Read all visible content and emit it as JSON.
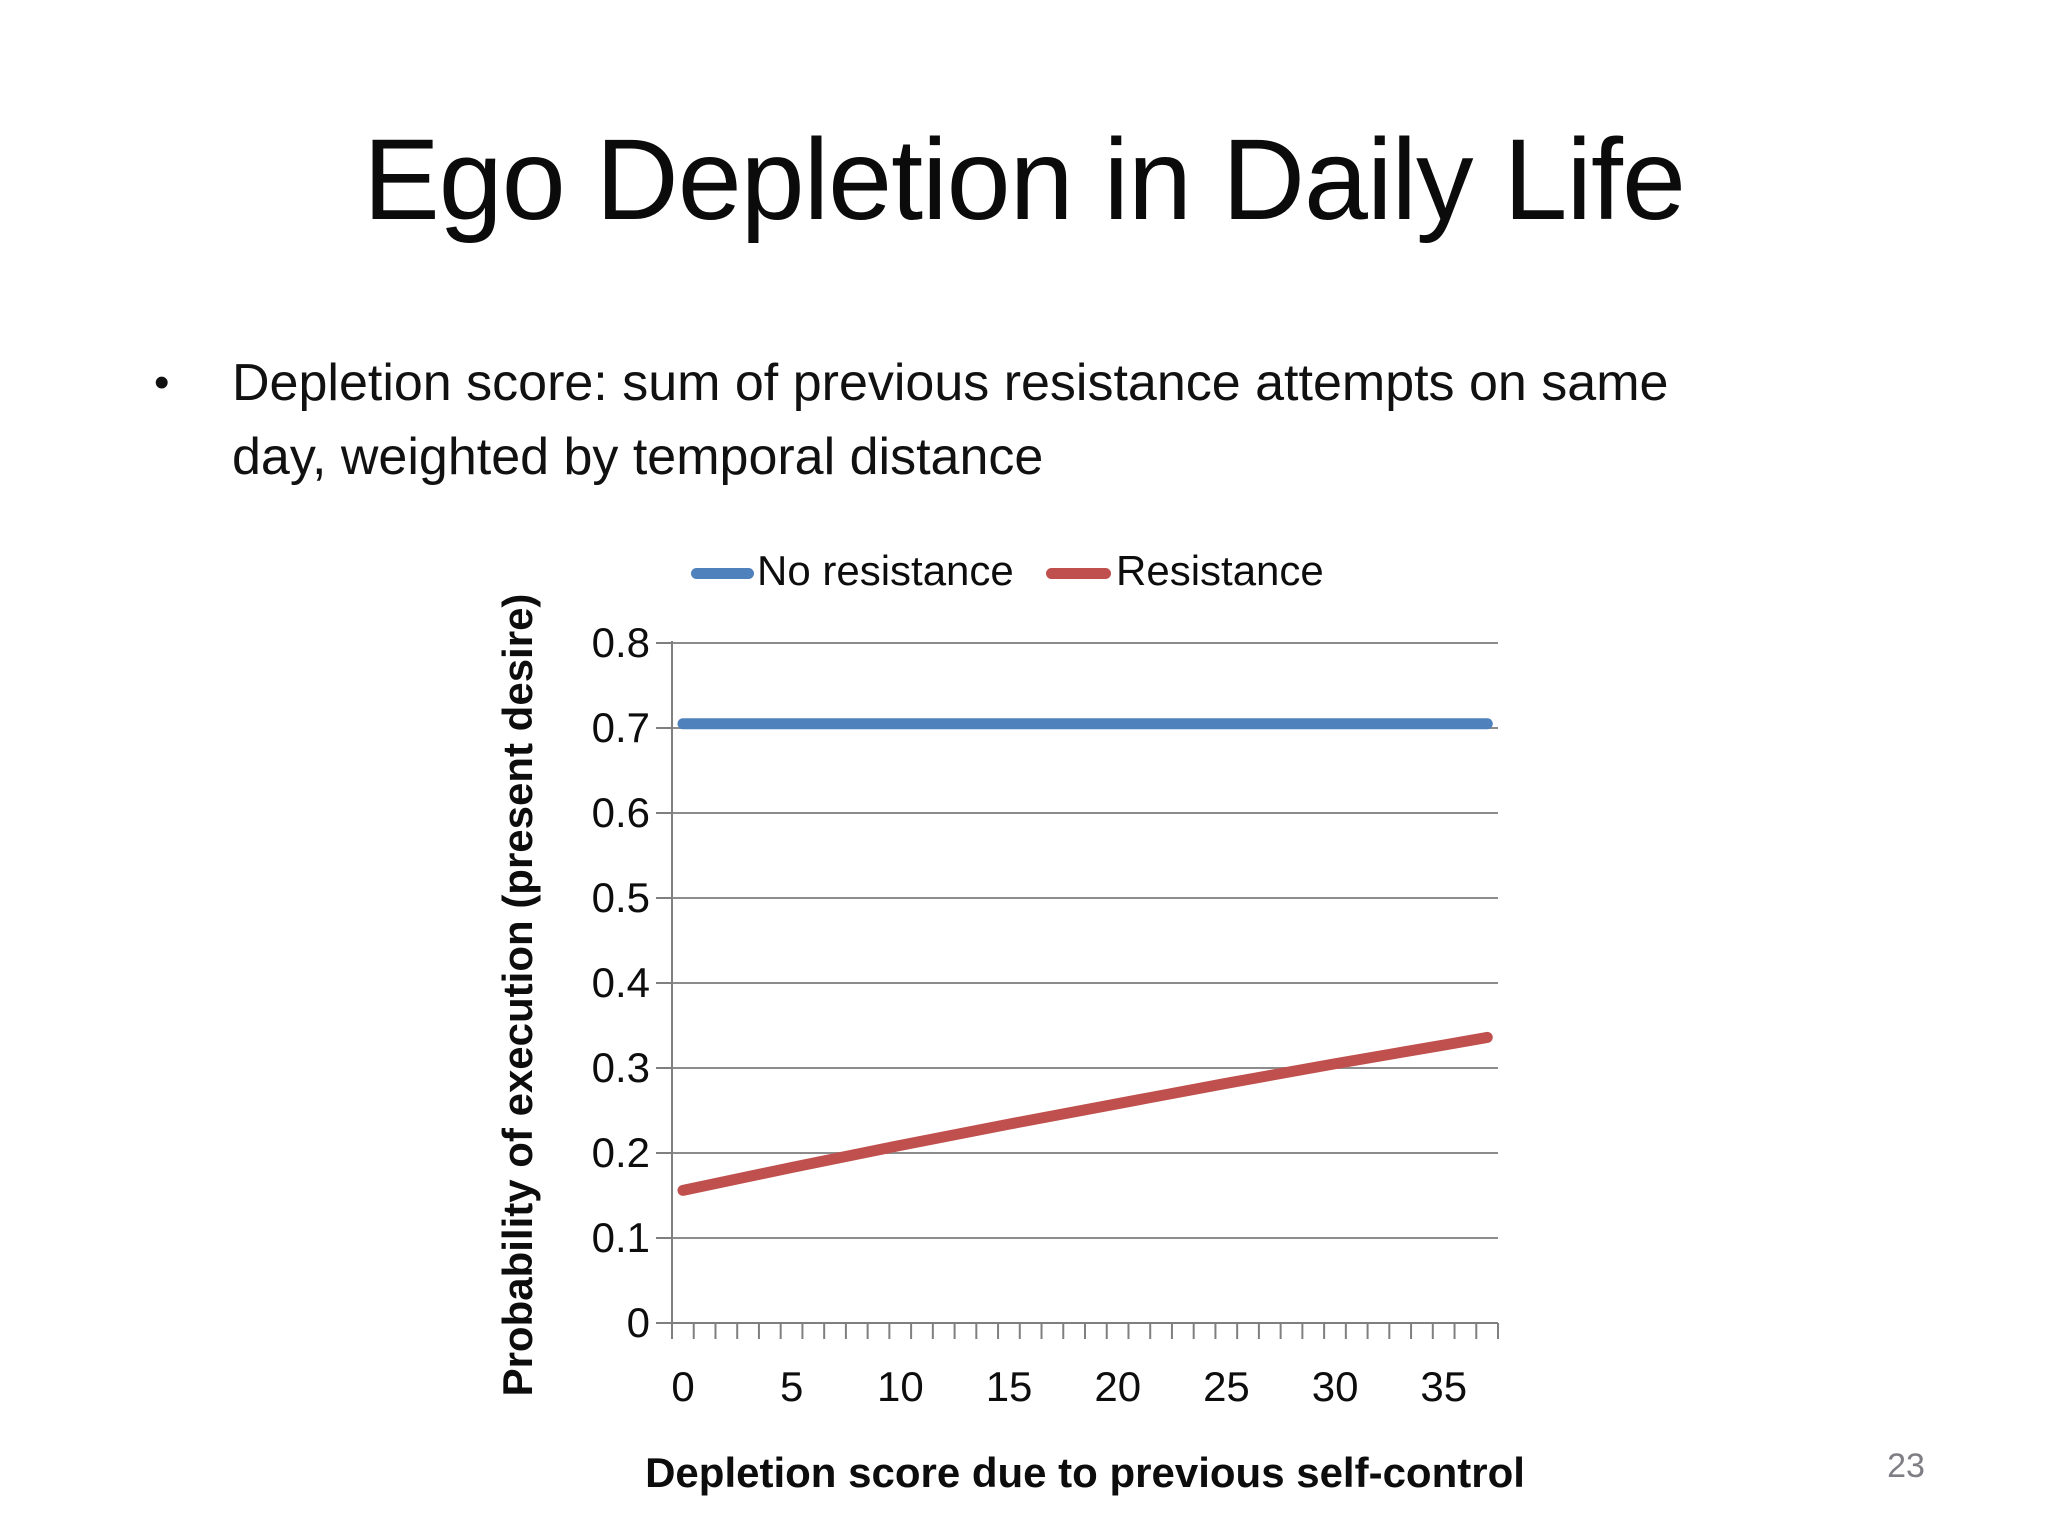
{
  "slide": {
    "title": "Ego Depletion in Daily Life",
    "bullet_char": "•",
    "bullet_text": "Depletion score: sum of previous resistance attempts on same\nday, weighted by temporal distance",
    "page_number": "23"
  },
  "chart_data": {
    "type": "line",
    "title": "",
    "xlabel": "Depletion score due to previous self-control",
    "ylabel": "Probability of execution (present desire)",
    "xlim": [
      0,
      37
    ],
    "ylim": [
      0,
      0.8
    ],
    "grid": true,
    "legend_position": "top",
    "x_ticks": [
      0,
      5,
      10,
      15,
      20,
      25,
      30,
      35
    ],
    "x_tick_labels": [
      "0",
      "5",
      "10",
      "15",
      "20",
      "25",
      "30",
      "35"
    ],
    "x_minor_tick_step": 1,
    "y_ticks": [
      0,
      0.1,
      0.2,
      0.3,
      0.4,
      0.5,
      0.6,
      0.7,
      0.8
    ],
    "y_tick_labels": [
      "0",
      "0.1",
      "0.2",
      "0.3",
      "0.4",
      "0.5",
      "0.6",
      "0.7",
      "0.8"
    ],
    "x": [
      0,
      5,
      10,
      15,
      20,
      25,
      30,
      35,
      37
    ],
    "series": [
      {
        "name": "No resistance",
        "color": "#4F81BD",
        "values": [
          0.705,
          0.705,
          0.705,
          0.705,
          0.705,
          0.705,
          0.705,
          0.705,
          0.705
        ]
      },
      {
        "name": "Resistance",
        "color": "#C0504D",
        "values": [
          0.156,
          0.183,
          0.209,
          0.234,
          0.258,
          0.282,
          0.305,
          0.327,
          0.336
        ]
      }
    ],
    "axis_color": "#7f7f7f",
    "gridline_color": "#8c8c8c"
  }
}
